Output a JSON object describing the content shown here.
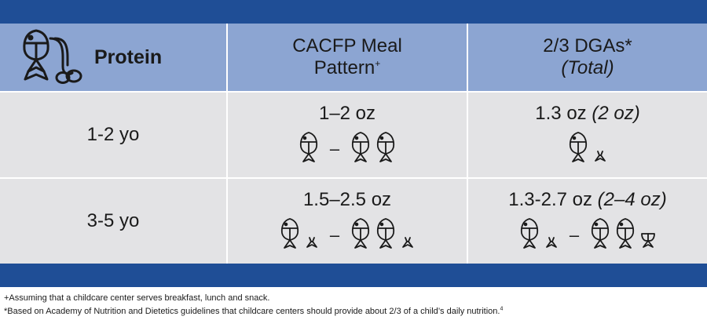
{
  "header": {
    "protein_label": "Protein",
    "col2_line1": "CACFP Meal",
    "col2_line2": "Pattern",
    "col2_sup": "+",
    "col3_line1": "2/3 DGAs*",
    "col3_line2": "(Total)"
  },
  "rows": [
    {
      "age": "1-2 yo",
      "cacfp_amount": "1–2 oz",
      "dga_amount": "1.3 oz",
      "dga_total": "(2 oz)"
    },
    {
      "age": "3-5 yo",
      "cacfp_amount": "1.5–2.5 oz",
      "dga_amount": "1.3-2.7 oz",
      "dga_total": "(2–4 oz)"
    }
  ],
  "range_dash": "–",
  "footnotes": {
    "plus": "+Assuming that a childcare center serves breakfast, lunch and snack.",
    "star": "*Based on Academy of Nutrition and Dietetics guidelines that childcare centers should provide about 2/3 of a child’s daily nutrition.",
    "star_sup": "4"
  },
  "colors": {
    "band": "#1f4e96",
    "header_bg": "#8ca5d2",
    "row_bg": "#e3e3e5"
  },
  "icons": [
    "protein-icon",
    "fish-icon",
    "fish-fragment-icon"
  ]
}
